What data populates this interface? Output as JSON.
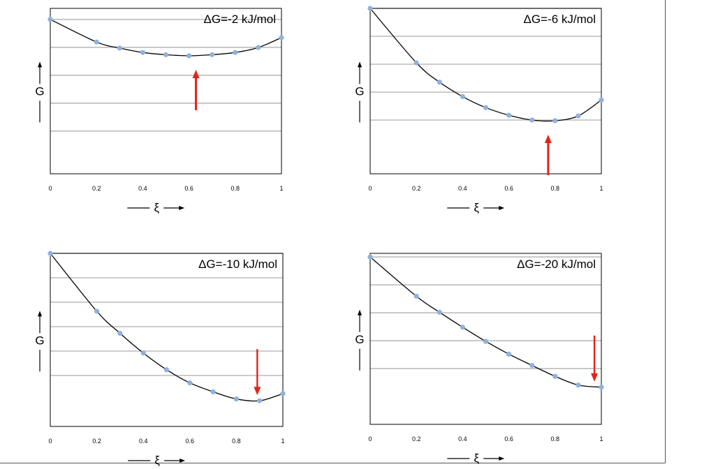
{
  "colors": {
    "marker": "#8fb1de",
    "curve": "#000000",
    "arrow": "#e2231a",
    "grid": "#bcbcbc"
  },
  "chart_data": [
    {
      "type": "line",
      "title": "ΔG=-2 kJ/mol",
      "ylabel": "G",
      "xlabel": "ξ",
      "x": [
        0,
        0.2,
        0.3,
        0.4,
        0.5,
        0.6,
        0.7,
        0.8,
        0.9,
        1
      ],
      "y": [
        1.0,
        0.59,
        0.48,
        0.4,
        0.36,
        0.34,
        0.36,
        0.4,
        0.49,
        0.67
      ],
      "xlim": [
        0,
        1
      ],
      "ylim": [
        -1.8,
        1.2
      ],
      "xticks": [
        "0",
        "0.2",
        "0.4",
        "0.6",
        "0.8",
        "1"
      ],
      "grid": true,
      "arrow": {
        "x": 0.63,
        "direction": "up"
      }
    },
    {
      "type": "line",
      "title": "ΔG=-6 kJ/mol",
      "ylabel": "G",
      "xlabel": "ξ",
      "x": [
        0,
        0.2,
        0.3,
        0.4,
        0.5,
        0.6,
        0.7,
        0.8,
        0.9,
        1
      ],
      "y": [
        1.0,
        0.21,
        -0.07,
        -0.28,
        -0.44,
        -0.55,
        -0.62,
        -0.63,
        -0.56,
        -0.33
      ],
      "xlim": [
        0,
        1
      ],
      "ylim": [
        -1.4,
        1.0
      ],
      "xticks": [
        "0",
        "0.2",
        "0.4",
        "0.6",
        "0.8",
        "1"
      ],
      "grid": true,
      "arrow": {
        "x": 0.77,
        "direction": "up"
      }
    },
    {
      "type": "line",
      "title": "ΔG=-10 kJ/mol",
      "ylabel": "G",
      "xlabel": "ξ",
      "x": [
        0,
        0.2,
        0.3,
        0.4,
        0.5,
        0.6,
        0.7,
        0.8,
        0.9,
        1
      ],
      "y": [
        1.0,
        0.03,
        -0.34,
        -0.67,
        -0.95,
        -1.17,
        -1.32,
        -1.44,
        -1.47,
        -1.35
      ],
      "xlim": [
        0,
        1
      ],
      "ylim": [
        -1.9,
        1.0
      ],
      "xticks": [
        "0",
        "0.2",
        "0.4",
        "0.6",
        "0.8",
        "1"
      ],
      "grid": true,
      "arrow": {
        "x": 0.89,
        "direction": "down"
      }
    },
    {
      "type": "line",
      "title": "ΔG=-20 kJ/mol",
      "ylabel": "G",
      "xlabel": "ξ",
      "x": [
        0,
        0.2,
        0.3,
        0.4,
        0.5,
        0.6,
        0.7,
        0.8,
        0.9,
        1
      ],
      "y": [
        1.0,
        -0.08,
        -0.52,
        -0.93,
        -1.32,
        -1.67,
        -1.98,
        -2.28,
        -2.52,
        -2.58
      ],
      "xlim": [
        0,
        1
      ],
      "ylim": [
        -3.6,
        1.1
      ],
      "xticks": [
        "0",
        "0.2",
        "0.4",
        "0.6",
        "0.8",
        "1"
      ],
      "grid": true,
      "arrow": {
        "x": 0.97,
        "direction": "down"
      }
    }
  ]
}
